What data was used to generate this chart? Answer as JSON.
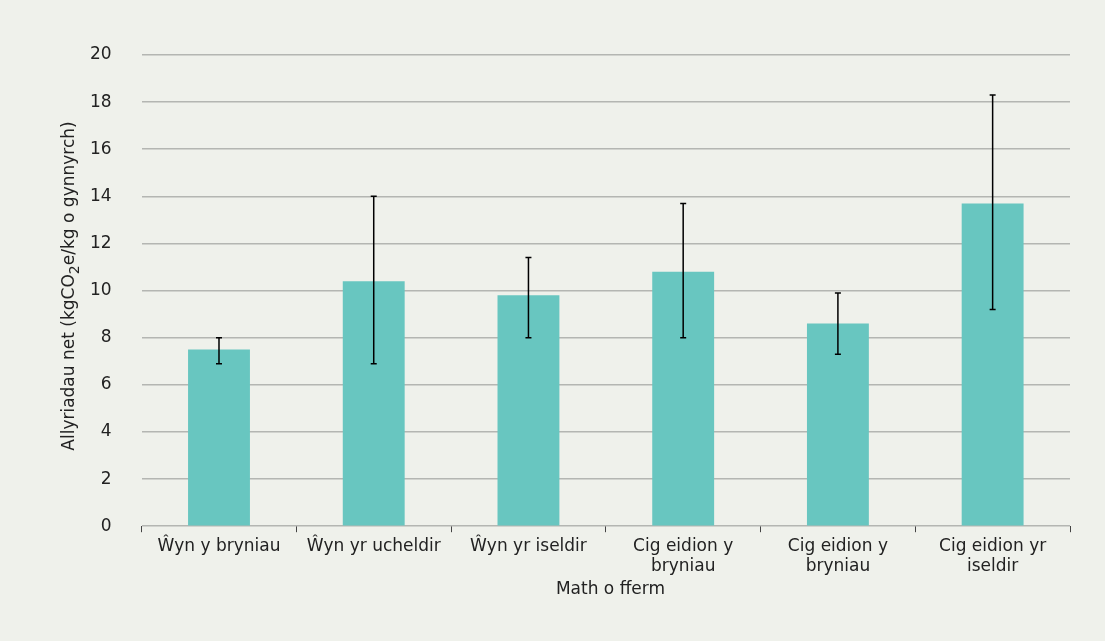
{
  "chart_data": {
    "type": "bar",
    "xlabel": "Math o fferm",
    "ylabel": "Allyriadau net (kgCO$_{2}$e/kg o gynnyrch)",
    "categories": [
      "Ŵyn y bryniau",
      "Ŵyn yr ucheldir",
      "Ŵyn yr iseldir",
      "Cig eidion y bryniau",
      "Cig eidion y bryniau",
      "Cig eidion yr iseldir"
    ],
    "values": [
      7.5,
      10.4,
      9.8,
      10.8,
      8.6,
      13.7
    ],
    "errors": [
      [
        6.9,
        8.0
      ],
      [
        6.9,
        14.0
      ],
      [
        8.0,
        11.4
      ],
      [
        8.0,
        13.7
      ],
      [
        7.3,
        9.9
      ],
      [
        9.2,
        18.3
      ]
    ],
    "color": "#68c6c0",
    "ylim": [
      0,
      20
    ],
    "yticks": [
      0,
      2,
      4,
      6,
      8,
      10,
      12,
      14,
      16,
      18,
      20
    ],
    "grid": "y",
    "legend": false
  }
}
